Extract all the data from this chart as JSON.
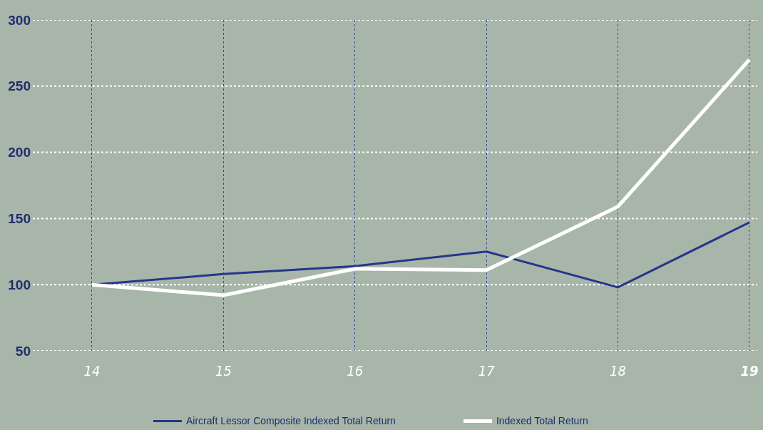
{
  "chart_data": {
    "type": "line",
    "categories": [
      "14",
      "15",
      "16",
      "17",
      "18",
      "19"
    ],
    "series": [
      {
        "name": "Aircraft Lessor Composite Indexed Total Return",
        "color": "#26358a",
        "values": [
          100,
          108,
          114,
          125,
          98,
          147
        ]
      },
      {
        "name": "Indexed Total Return",
        "color": "#ffffff",
        "values": [
          100,
          92,
          112,
          111,
          159,
          270
        ]
      }
    ],
    "ylim": [
      50,
      300
    ],
    "yticks": [
      50,
      100,
      150,
      200,
      250,
      300
    ],
    "grid": true,
    "legend": "bottom",
    "marker": "none",
    "line_style": "solid"
  }
}
